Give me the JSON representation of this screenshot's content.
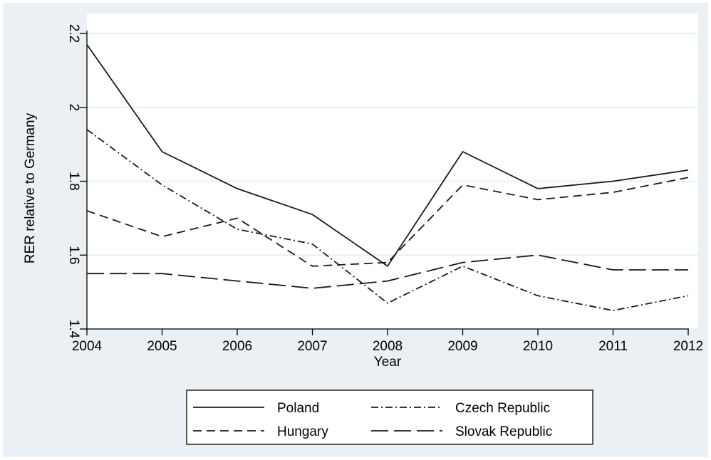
{
  "chart_data": {
    "type": "line",
    "xlabel": "Year",
    "ylabel": "RER relative to Germany",
    "x": [
      2004,
      2005,
      2006,
      2007,
      2008,
      2009,
      2010,
      2011,
      2012
    ],
    "xlim": [
      2004,
      2012
    ],
    "ylim": [
      1.4,
      2.2
    ],
    "yticks": [
      1.4,
      1.6,
      1.8,
      2,
      2.2
    ],
    "ytick_labels": [
      "1.4",
      "1.6",
      "1.8",
      "2",
      "2.2"
    ],
    "xtick_labels": [
      "2004",
      "2005",
      "2006",
      "2007",
      "2008",
      "2009",
      "2010",
      "2011",
      "2012"
    ],
    "grid": "horizontal",
    "legend_position": "bottom",
    "series": [
      {
        "name": "Poland",
        "style": "solid",
        "values": [
          2.17,
          1.88,
          1.78,
          1.71,
          1.57,
          1.88,
          1.78,
          1.8,
          1.83
        ]
      },
      {
        "name": "Czech Republic",
        "style": "dash-dot",
        "values": [
          1.94,
          1.79,
          1.67,
          1.63,
          1.47,
          1.57,
          1.49,
          1.45,
          1.49
        ]
      },
      {
        "name": "Hungary",
        "style": "dashed",
        "values": [
          1.72,
          1.65,
          1.7,
          1.57,
          1.58,
          1.79,
          1.75,
          1.77,
          1.81
        ]
      },
      {
        "name": "Slovak Republic",
        "style": "long-dash",
        "values": [
          1.55,
          1.55,
          1.53,
          1.51,
          1.53,
          1.58,
          1.6,
          1.56,
          1.56
        ]
      }
    ],
    "colors": {
      "background": "#eaf0f3",
      "plot_background": "#ffffff",
      "line": "#1a1a1a",
      "grid": "#e6ecef"
    }
  }
}
